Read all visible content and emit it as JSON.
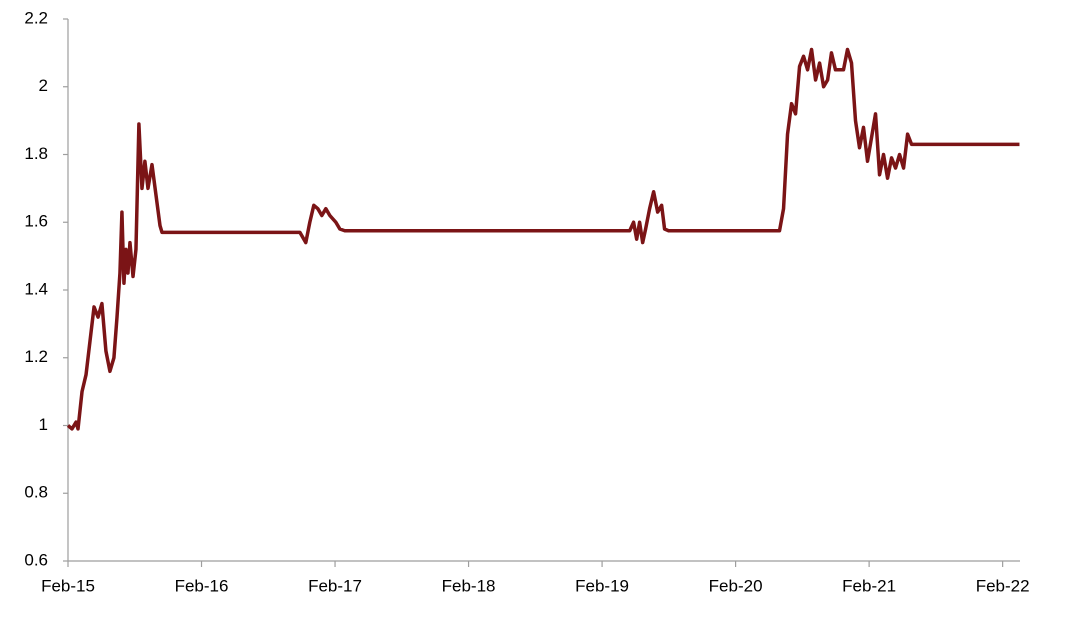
{
  "chart_data": {
    "type": "line",
    "color": "#7b1416",
    "x": [
      2015.08,
      2015.11,
      2015.14,
      2015.155,
      2015.185,
      2015.215,
      2015.245,
      2015.275,
      2015.305,
      2015.334,
      2015.364,
      2015.394,
      2015.424,
      2015.447,
      2015.469,
      2015.484,
      2015.499,
      2015.514,
      2015.529,
      2015.544,
      2015.567,
      2015.589,
      2015.611,
      2015.634,
      2015.656,
      2015.679,
      2015.709,
      2015.739,
      2015.769,
      2015.784,
      2016.817,
      2016.861,
      2016.891,
      2016.921,
      2016.951,
      2016.981,
      2017.011,
      2017.041,
      2017.086,
      2017.116,
      2017.153,
      2019.287,
      2019.316,
      2019.339,
      2019.361,
      2019.384,
      2019.406,
      2019.436,
      2019.466,
      2019.496,
      2019.526,
      2019.548,
      2019.578,
      2020.409,
      2020.439,
      2020.469,
      2020.499,
      2020.529,
      2020.559,
      2020.589,
      2020.619,
      2020.649,
      2020.679,
      2020.709,
      2020.739,
      2020.769,
      2020.798,
      2020.828,
      2020.888,
      2020.918,
      2020.948,
      2020.978,
      2021.008,
      2021.038,
      2021.068,
      2021.098,
      2021.128,
      2021.158,
      2021.188,
      2021.218,
      2021.248,
      2021.278,
      2021.308,
      2021.338,
      2021.368,
      2021.398,
      2022.206
    ],
    "values": [
      1.0,
      0.99,
      1.01,
      0.99,
      1.1,
      1.15,
      1.25,
      1.35,
      1.32,
      1.36,
      1.22,
      1.16,
      1.2,
      1.32,
      1.45,
      1.63,
      1.42,
      1.52,
      1.45,
      1.54,
      1.44,
      1.52,
      1.89,
      1.7,
      1.78,
      1.7,
      1.77,
      1.68,
      1.59,
      1.57,
      1.57,
      1.54,
      1.6,
      1.65,
      1.64,
      1.62,
      1.64,
      1.62,
      1.6,
      1.58,
      1.575,
      1.575,
      1.6,
      1.55,
      1.6,
      1.54,
      1.58,
      1.64,
      1.69,
      1.63,
      1.65,
      1.58,
      1.575,
      1.575,
      1.64,
      1.86,
      1.95,
      1.92,
      2.06,
      2.09,
      2.05,
      2.11,
      2.02,
      2.07,
      2.0,
      2.02,
      2.1,
      2.05,
      2.05,
      2.11,
      2.07,
      1.9,
      1.82,
      1.88,
      1.78,
      1.85,
      1.92,
      1.74,
      1.8,
      1.73,
      1.79,
      1.76,
      1.8,
      1.76,
      1.86,
      1.83,
      1.83
    ],
    "xlim": [
      2015.08,
      2022.21
    ],
    "xticks": [
      {
        "value": 2015.08,
        "label": "Feb-15"
      },
      {
        "value": 2016.08,
        "label": "Feb-16"
      },
      {
        "value": 2017.08,
        "label": "Feb-17"
      },
      {
        "value": 2018.08,
        "label": "Feb-18"
      },
      {
        "value": 2019.08,
        "label": "Feb-19"
      },
      {
        "value": 2020.08,
        "label": "Feb-20"
      },
      {
        "value": 2021.08,
        "label": "Feb-21"
      },
      {
        "value": 2022.08,
        "label": "Feb-22"
      }
    ],
    "ylim": [
      0.6,
      2.2
    ],
    "yticks": [
      0.6,
      0.8,
      1,
      1.2,
      1.4,
      1.6,
      1.8,
      2,
      2.2
    ],
    "grid": false
  }
}
